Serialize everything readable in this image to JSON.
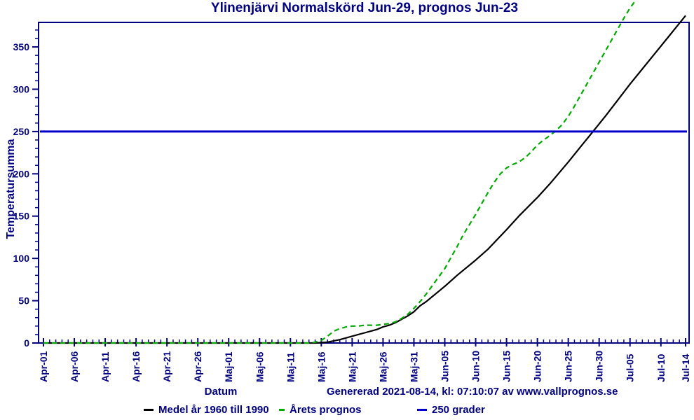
{
  "title": "Ylinenjärvi Normalskörd Jun-29, prognos Jun-23",
  "colors": {
    "text_and_frame": "#000080",
    "mean_line": "#000000",
    "forecast_line": "#00AA00",
    "threshold_line": "#0000CC",
    "background": "#ffffff"
  },
  "footer": {
    "xlabel": "Datum",
    "generated": "Genererad 2021-08-14, kl: 07:10:07 av www.vallprognos.se"
  },
  "legend": [
    {
      "label": "Medel år 1960 till 1990",
      "color": "#000000",
      "marker": "long-dash"
    },
    {
      "label": "Årets prognos",
      "color": "#00AA00",
      "marker": "short-dash"
    },
    {
      "label": "250 grader",
      "color": "#0000CC",
      "marker": "long-dash"
    }
  ],
  "chart_data": {
    "type": "line",
    "title": "Ylinenjärvi Normalskörd Jun-29, prognos Jun-23",
    "xlabel": "Datum",
    "ylabel": "Temperatursumma",
    "x_unit": "days since Apr-01",
    "xlim_days": [
      0,
      104
    ],
    "ylim": [
      0,
      379
    ],
    "grid": false,
    "legend_position": "bottom",
    "y_major_ticks": [
      0,
      50,
      100,
      150,
      200,
      250,
      300,
      350
    ],
    "y_minor_step": 10,
    "y_minor_max": 370,
    "x_ticks": [
      {
        "day": 0,
        "label": "Apr-01"
      },
      {
        "day": 5,
        "label": "Apr-06"
      },
      {
        "day": 10,
        "label": "Apr-11"
      },
      {
        "day": 15,
        "label": "Apr-16"
      },
      {
        "day": 20,
        "label": "Apr-21"
      },
      {
        "day": 25,
        "label": "Apr-26"
      },
      {
        "day": 30,
        "label": "Maj-01"
      },
      {
        "day": 35,
        "label": "Maj-06"
      },
      {
        "day": 40,
        "label": "Maj-11"
      },
      {
        "day": 45,
        "label": "Maj-16"
      },
      {
        "day": 50,
        "label": "Maj-21"
      },
      {
        "day": 55,
        "label": "Maj-26"
      },
      {
        "day": 60,
        "label": "Maj-31"
      },
      {
        "day": 65,
        "label": "Jun-05"
      },
      {
        "day": 70,
        "label": "Jun-10"
      },
      {
        "day": 75,
        "label": "Jun-15"
      },
      {
        "day": 80,
        "label": "Jun-20"
      },
      {
        "day": 85,
        "label": "Jun-25"
      },
      {
        "day": 90,
        "label": "Jun-30"
      },
      {
        "day": 95,
        "label": "Jul-05"
      },
      {
        "day": 100,
        "label": "Jul-10"
      },
      {
        "day": 104,
        "label": "Jul-14"
      }
    ],
    "series": [
      {
        "name": "Medel år 1960 till 1990",
        "color": "#000000",
        "style": "solid",
        "points": [
          [
            0,
            0
          ],
          [
            5,
            0
          ],
          [
            10,
            0
          ],
          [
            15,
            0
          ],
          [
            20,
            0
          ],
          [
            25,
            0
          ],
          [
            30,
            0
          ],
          [
            35,
            0
          ],
          [
            40,
            0
          ],
          [
            44,
            0
          ],
          [
            46,
            1
          ],
          [
            48,
            4
          ],
          [
            50,
            8
          ],
          [
            52,
            12
          ],
          [
            54,
            16
          ],
          [
            55,
            19
          ],
          [
            56,
            21
          ],
          [
            57,
            24
          ],
          [
            58,
            28
          ],
          [
            59,
            32
          ],
          [
            60,
            37
          ],
          [
            61,
            44
          ],
          [
            62,
            49
          ],
          [
            63,
            55
          ],
          [
            64,
            61
          ],
          [
            65,
            67
          ],
          [
            67,
            80
          ],
          [
            70,
            98
          ],
          [
            72,
            111
          ],
          [
            75,
            134
          ],
          [
            77,
            150
          ],
          [
            80,
            172
          ],
          [
            82,
            188
          ],
          [
            85,
            214
          ],
          [
            87,
            232
          ],
          [
            89,
            250
          ],
          [
            91,
            268
          ],
          [
            93,
            287
          ],
          [
            95,
            306
          ],
          [
            97,
            324
          ],
          [
            99,
            342
          ],
          [
            101,
            360
          ],
          [
            103,
            378
          ],
          [
            104,
            387
          ]
        ]
      },
      {
        "name": "Årets prognos",
        "color": "#00AA00",
        "style": "dashed",
        "points": [
          [
            0,
            0
          ],
          [
            5,
            0
          ],
          [
            10,
            0
          ],
          [
            15,
            0
          ],
          [
            20,
            0
          ],
          [
            25,
            0
          ],
          [
            30,
            0
          ],
          [
            35,
            0
          ],
          [
            40,
            0
          ],
          [
            43,
            0
          ],
          [
            44,
            1
          ],
          [
            45,
            3
          ],
          [
            46,
            8
          ],
          [
            47,
            14
          ],
          [
            48,
            17
          ],
          [
            49,
            19
          ],
          [
            50,
            20
          ],
          [
            51,
            20
          ],
          [
            52,
            21
          ],
          [
            53,
            21
          ],
          [
            54,
            21
          ],
          [
            55,
            22
          ],
          [
            56,
            23
          ],
          [
            57,
            25
          ],
          [
            58,
            29
          ],
          [
            59,
            34
          ],
          [
            60,
            41
          ],
          [
            61,
            49
          ],
          [
            62,
            58
          ],
          [
            63,
            68
          ],
          [
            64,
            78
          ],
          [
            65,
            88
          ],
          [
            66,
            101
          ],
          [
            67,
            114
          ],
          [
            68,
            128
          ],
          [
            69,
            140
          ],
          [
            70,
            152
          ],
          [
            71,
            165
          ],
          [
            72,
            178
          ],
          [
            73,
            190
          ],
          [
            74,
            200
          ],
          [
            75,
            207
          ],
          [
            76,
            211
          ],
          [
            77,
            214
          ],
          [
            78,
            219
          ],
          [
            79,
            226
          ],
          [
            80,
            234
          ],
          [
            81,
            240
          ],
          [
            82,
            245
          ],
          [
            83,
            251
          ],
          [
            84,
            258
          ],
          [
            85,
            268
          ],
          [
            86,
            280
          ],
          [
            87,
            293
          ],
          [
            88,
            306
          ],
          [
            89,
            319
          ],
          [
            90,
            332
          ],
          [
            91,
            345
          ],
          [
            92,
            358
          ],
          [
            93,
            371
          ],
          [
            94,
            384
          ],
          [
            95,
            396
          ],
          [
            96,
            406
          ]
        ]
      },
      {
        "name": "250 grader",
        "color": "#0000CC",
        "style": "solid",
        "full_width": true,
        "points": [
          [
            0,
            250
          ],
          [
            104,
            250
          ]
        ]
      }
    ]
  }
}
